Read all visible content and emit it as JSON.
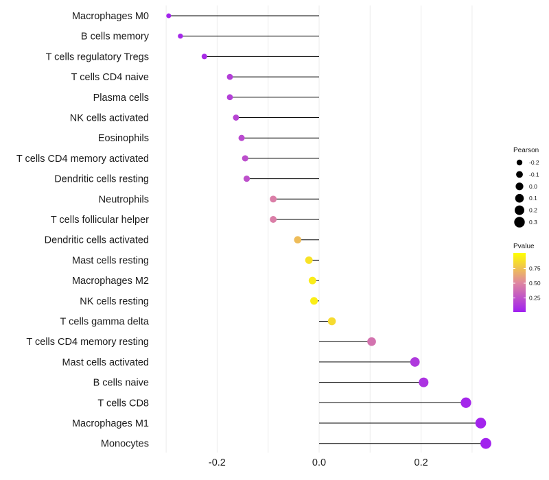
{
  "chart_data": {
    "type": "lollipop",
    "title": "",
    "xlabel": "",
    "ylabel": "",
    "xlim": [
      -0.3,
      0.33
    ],
    "xticks": [
      -0.2,
      0.0,
      0.2
    ],
    "xtick_labels": [
      "-0.2",
      "0.0",
      "0.2"
    ],
    "baseline": 0,
    "grid": true,
    "series": [
      {
        "name": "Macrophages M0",
        "x": -0.295,
        "pvalue": 0.02
      },
      {
        "name": "B cells memory",
        "x": -0.272,
        "pvalue": 0.04
      },
      {
        "name": "T cells regulatory  Tregs",
        "x": -0.225,
        "pvalue": 0.06
      },
      {
        "name": "T cells CD4 naive",
        "x": -0.175,
        "pvalue": 0.15
      },
      {
        "name": "Plasma cells",
        "x": -0.175,
        "pvalue": 0.15
      },
      {
        "name": "NK cells activated",
        "x": -0.163,
        "pvalue": 0.18
      },
      {
        "name": "Eosinophils",
        "x": -0.152,
        "pvalue": 0.2
      },
      {
        "name": "T cells CD4 memory activated",
        "x": -0.145,
        "pvalue": 0.22
      },
      {
        "name": "Dendritic cells resting",
        "x": -0.142,
        "pvalue": 0.23
      },
      {
        "name": "Neutrophils",
        "x": -0.09,
        "pvalue": 0.45
      },
      {
        "name": "T cells follicular helper",
        "x": -0.09,
        "pvalue": 0.45
      },
      {
        "name": "Dendritic cells activated",
        "x": -0.042,
        "pvalue": 0.72
      },
      {
        "name": "Mast cells resting",
        "x": -0.02,
        "pvalue": 0.88
      },
      {
        "name": "Macrophages M2",
        "x": -0.013,
        "pvalue": 0.92
      },
      {
        "name": "NK cells resting",
        "x": -0.01,
        "pvalue": 0.93
      },
      {
        "name": "T cells gamma delta",
        "x": 0.025,
        "pvalue": 0.85
      },
      {
        "name": "T cells CD4 memory resting",
        "x": 0.103,
        "pvalue": 0.4
      },
      {
        "name": "Mast cells activated",
        "x": 0.188,
        "pvalue": 0.12
      },
      {
        "name": "B cells naive",
        "x": 0.205,
        "pvalue": 0.09
      },
      {
        "name": "T cells CD8",
        "x": 0.288,
        "pvalue": 0.03
      },
      {
        "name": "Macrophages M1",
        "x": 0.317,
        "pvalue": 0.02
      },
      {
        "name": "Monocytes",
        "x": 0.327,
        "pvalue": 0.01
      }
    ],
    "legend": {
      "size_title": "Pearson",
      "size_values": [
        -0.2,
        -0.1,
        0.0,
        0.1,
        0.2,
        0.3
      ],
      "size_labels": [
        "-0.2",
        "-0.1",
        "0.0",
        "0.1",
        "0.2",
        "0.3"
      ],
      "color_title": "Pvalue",
      "color_breaks": [
        0.25,
        0.5,
        0.75
      ],
      "color_labels": [
        "0.25",
        "0.50",
        "0.75"
      ],
      "color_low": "#a020f0",
      "color_mid": "#e0889f",
      "color_high": "#ffff00",
      "placement": "right"
    },
    "stem_color": "#000000"
  }
}
